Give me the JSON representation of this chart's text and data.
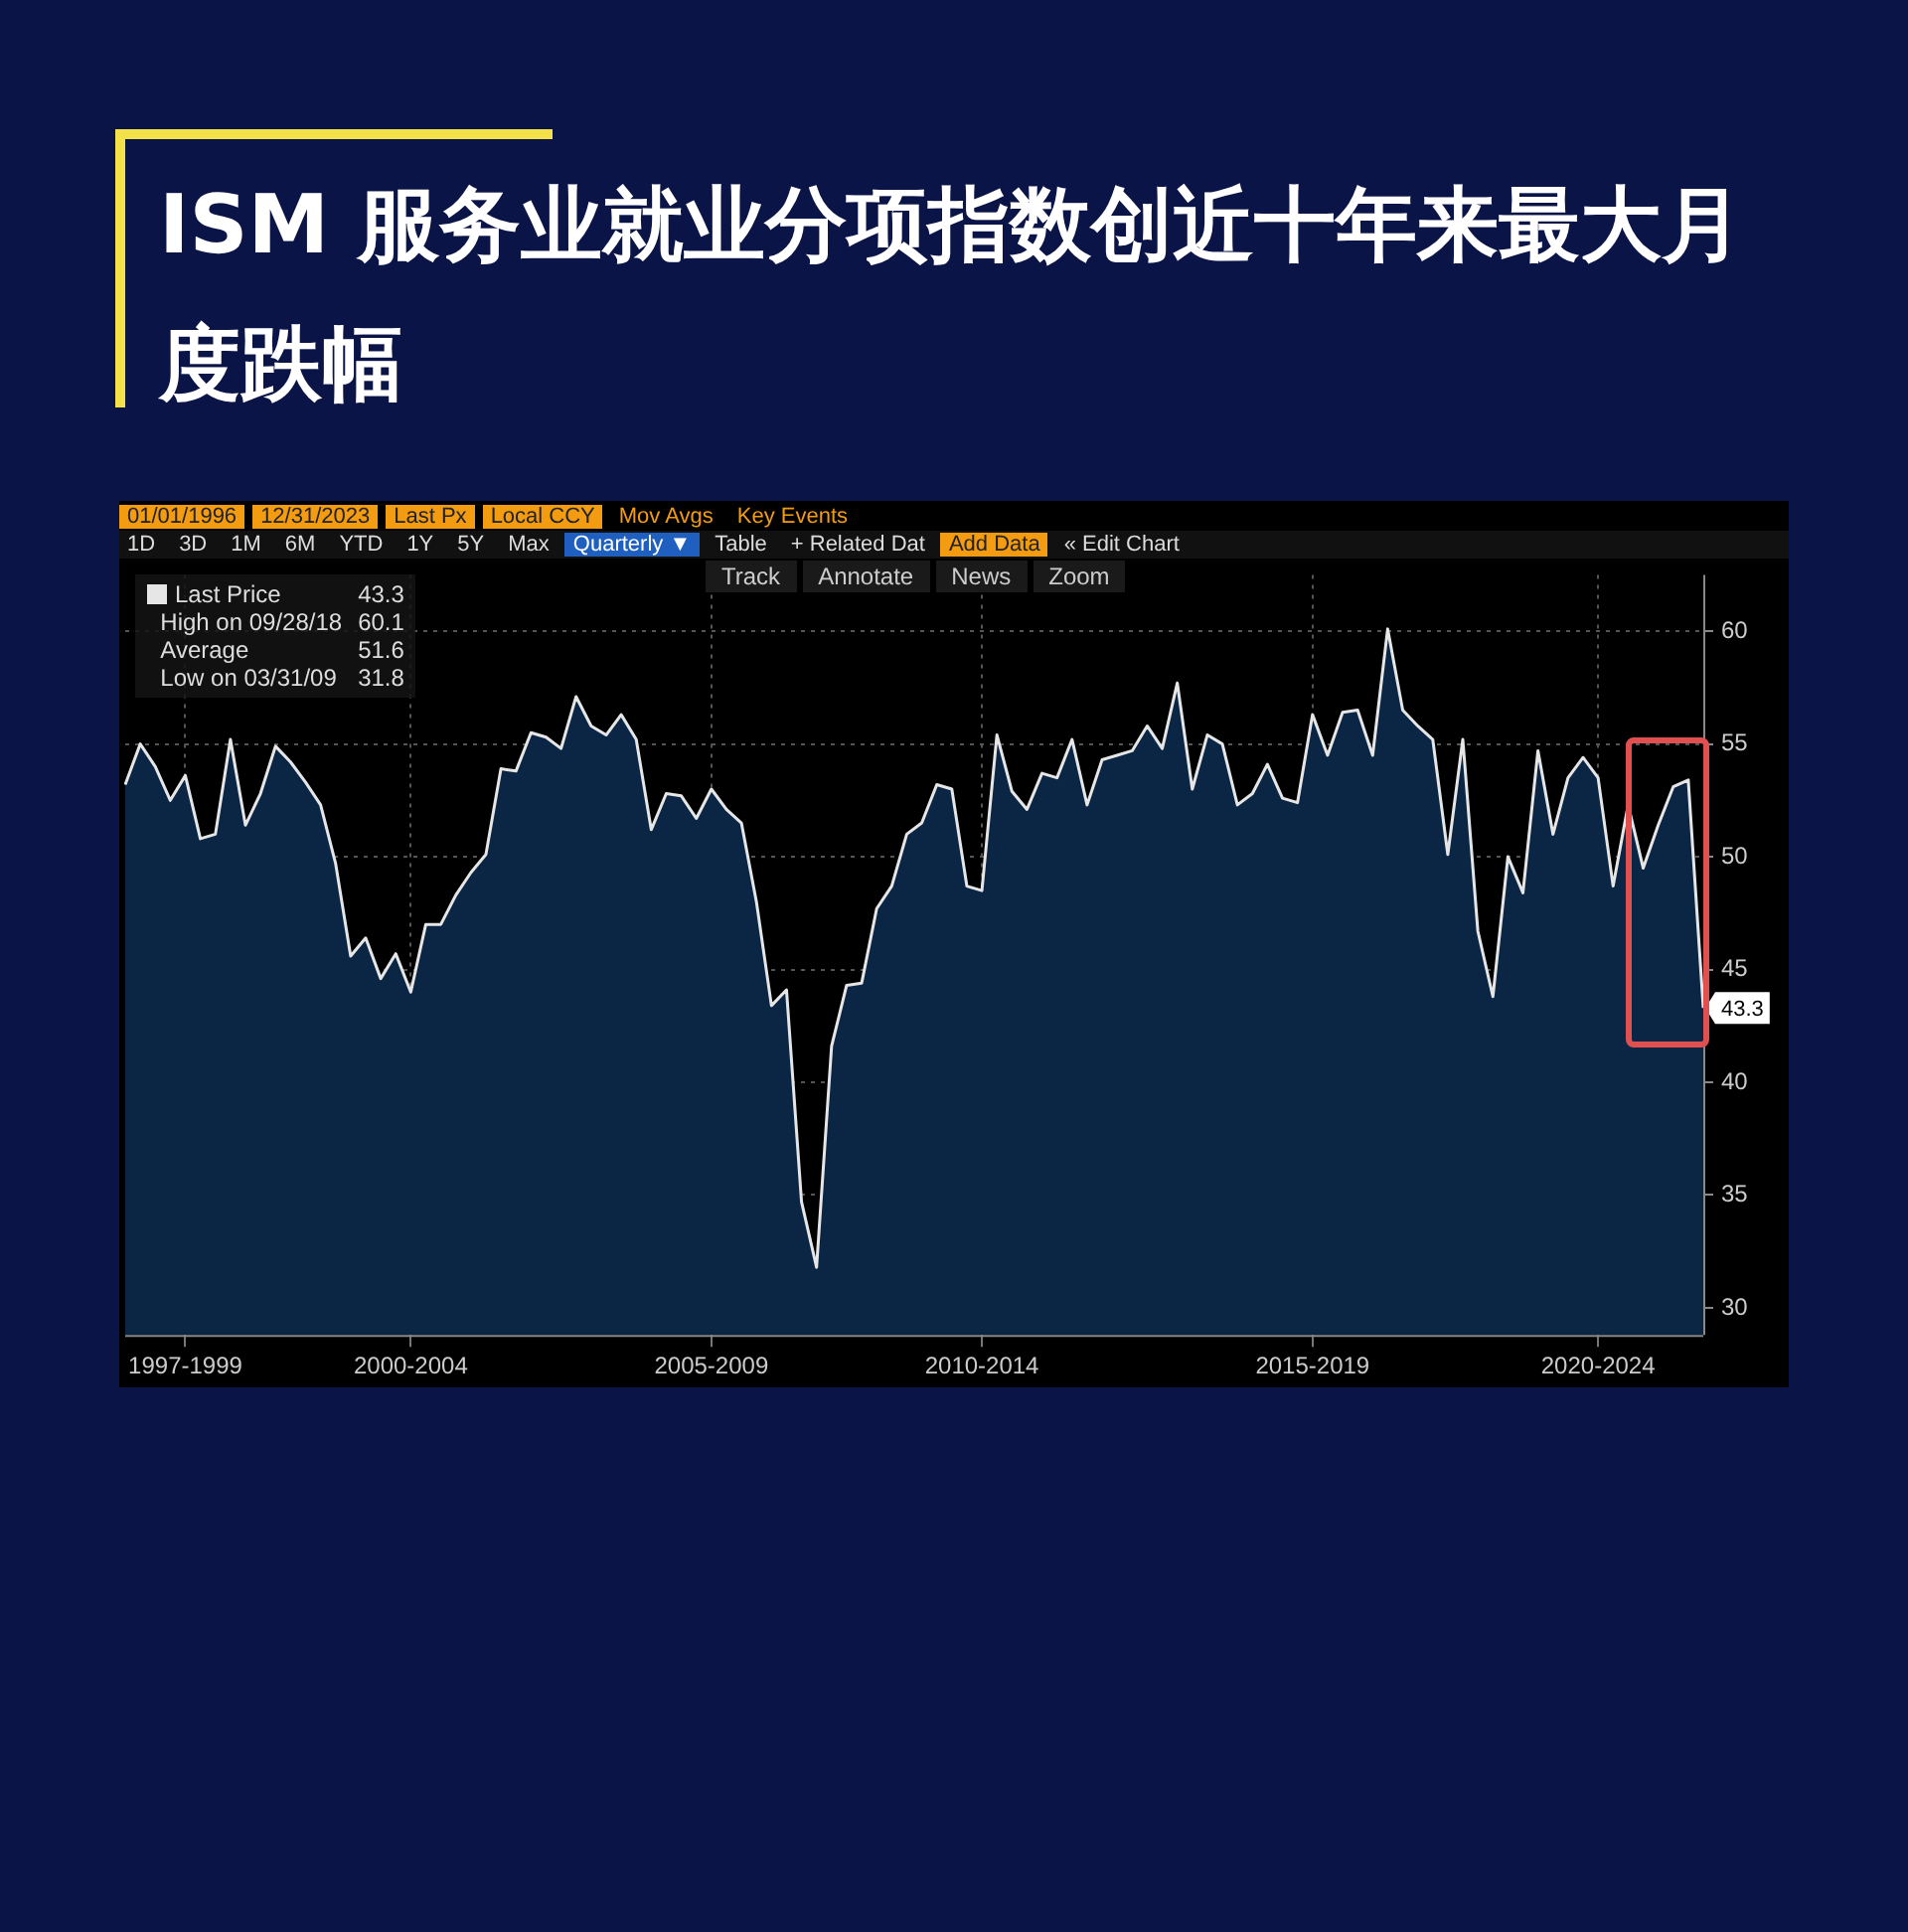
{
  "chart_data": {
    "type": "area",
    "title": "ISM 服务业就业分项指数创近十年来最大月度跌幅",
    "categories": [
      null,
      null,
      null,
      null,
      "1997-1999",
      null,
      null,
      null,
      null,
      null,
      null,
      null,
      null,
      null,
      null,
      null,
      null,
      null,
      null,
      "2000-2004",
      null,
      null,
      null,
      null,
      null,
      null,
      null,
      null,
      null,
      null,
      null,
      null,
      null,
      null,
      null,
      null,
      null,
      null,
      null,
      "2005-2009",
      null,
      null,
      null,
      null,
      null,
      null,
      null,
      null,
      null,
      null,
      null,
      null,
      null,
      null,
      null,
      null,
      null,
      "2010-2014",
      null,
      null,
      null,
      null,
      null,
      null,
      null,
      null,
      null,
      null,
      null,
      null,
      null,
      null,
      null,
      null,
      null,
      null,
      null,
      null,
      null,
      "2015-2019",
      null,
      null,
      null,
      null,
      null,
      null,
      null,
      null,
      null,
      null,
      null,
      null,
      null,
      null,
      null,
      null,
      null,
      null,
      "2020-2024",
      null,
      null,
      null,
      null,
      null,
      null,
      null
    ],
    "series": [
      {
        "name": "Last Price",
        "color": "#e6e6e6",
        "values": [
          53.2,
          55.0,
          54.0,
          52.5,
          53.6,
          50.8,
          51.0,
          55.2,
          51.4,
          52.8,
          54.9,
          54.2,
          53.3,
          52.3,
          49.7,
          45.6,
          46.4,
          44.6,
          45.7,
          44.0,
          47.0,
          47.0,
          48.3,
          49.3,
          50.1,
          53.9,
          53.8,
          55.5,
          55.3,
          54.8,
          57.1,
          55.8,
          55.4,
          56.3,
          55.2,
          51.2,
          52.8,
          52.7,
          51.7,
          53.0,
          52.1,
          51.5,
          48.0,
          43.4,
          44.1,
          34.7,
          31.8,
          41.6,
          44.3,
          44.4,
          47.7,
          48.7,
          51.0,
          51.5,
          53.2,
          53.0,
          48.7,
          48.5,
          55.4,
          52.9,
          52.1,
          53.7,
          53.5,
          55.2,
          52.3,
          54.3,
          54.5,
          54.7,
          55.8,
          54.8,
          57.7,
          53.0,
          55.4,
          55.0,
          52.3,
          52.8,
          54.1,
          52.6,
          52.4,
          56.3,
          54.5,
          56.4,
          56.5,
          54.5,
          60.1,
          56.5,
          55.8,
          55.2,
          50.1,
          55.2,
          46.7,
          43.8,
          50.0,
          48.4,
          54.7,
          51.0,
          53.5,
          54.4,
          53.5,
          48.7,
          52.3,
          49.5,
          51.4,
          53.1,
          53.4,
          43.3
        ]
      }
    ],
    "ylim": [
      28.8,
      62.5
    ],
    "yticks": [
      30,
      35,
      40,
      45,
      50,
      55,
      60
    ],
    "grid": true,
    "legend": "top left",
    "annotations": [
      "01/01/1996",
      "12/31/2023",
      "Last Px",
      "Local CCY",
      "Mov Avgs",
      "Key Events",
      "1D",
      "3D",
      "1M",
      "6M",
      "YTD",
      "1Y",
      "5Y",
      "Max",
      "Quarterly ▼",
      "Table",
      "+ Related Dat",
      "Add Data",
      "« Edit Chart",
      "Track",
      "Annotate",
      "News",
      "Zoom",
      "43.3",
      "High on 09/28/18",
      "60.1",
      "Average",
      "51.6",
      "Low on 03/31/09",
      "31.8",
      "43.3"
    ]
  }
}
